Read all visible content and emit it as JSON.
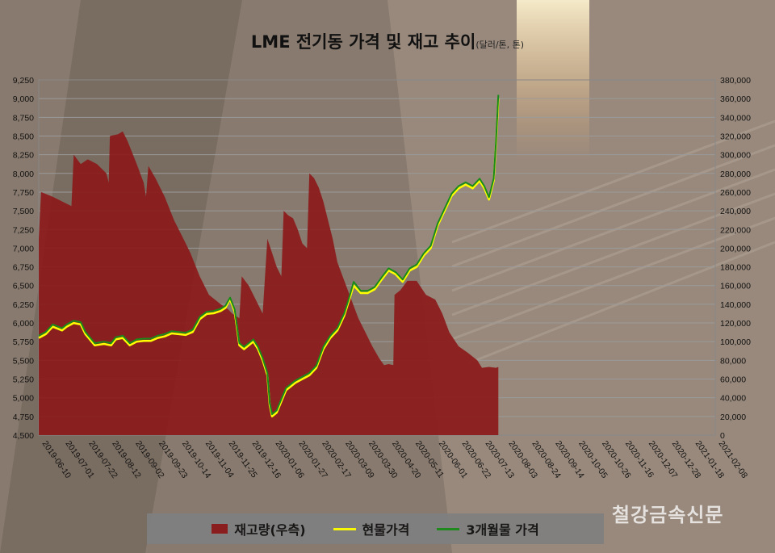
{
  "title": "LME 전기동 가격 및 재고 추이",
  "subtitle": "(달러/톤, 톤)",
  "watermark": "철강금속신문",
  "legend": {
    "inventory": "재고량(우측)",
    "spot": "현물가격",
    "three_month": "3개월물 가격"
  },
  "colors": {
    "inventory": "#8b1a1a",
    "spot": "#ffff00",
    "three_month": "#1a8a1a",
    "grid": "#9a9a9a"
  },
  "chart_data": {
    "type": "area+line",
    "xlabel": "",
    "ylabel": "",
    "grid": true,
    "legend_position": "bottom",
    "x_ticks": [
      "2019-06-10",
      "2019-07-01",
      "2019-07-22",
      "2019-08-12",
      "2019-09-02",
      "2019-09-23",
      "2019-10-14",
      "2019-11-04",
      "2019-11-25",
      "2019-12-16",
      "2020-01-06",
      "2020-01-27",
      "2020-02-17",
      "2020-03-09",
      "2020-03-30",
      "2020-04-20",
      "2020-05-11",
      "2020-06-01",
      "2020-06-22",
      "2020-07-13",
      "2020-08-03",
      "2020-08-24",
      "2020-09-14",
      "2020-10-05",
      "2020-10-26",
      "2020-11-16",
      "2020-12-07",
      "2020-12-28",
      "2021-01-18",
      "2021-02-08"
    ],
    "y_left": {
      "min": 4500,
      "max": 9250,
      "step": 250,
      "ticks": [
        "4,500",
        "4,750",
        "5,000",
        "5,250",
        "5,500",
        "5,750",
        "6,000",
        "6,250",
        "6,500",
        "6,750",
        "7,000",
        "7,250",
        "7,500",
        "7,750",
        "8,000",
        "8,250",
        "8,500",
        "8,750",
        "9,000",
        "9,250"
      ]
    },
    "y_right": {
      "min": 0,
      "max": 380000,
      "step": 20000,
      "ticks": [
        "0",
        "20,000",
        "40,000",
        "60,000",
        "80,000",
        "100,000",
        "120,000",
        "140,000",
        "160,000",
        "180,000",
        "200,000",
        "220,000",
        "240,000",
        "260,000",
        "280,000",
        "300,000",
        "320,000",
        "340,000",
        "360,000",
        "380,000"
      ]
    },
    "series": [
      {
        "name": "재고량(우측)",
        "axis": "right",
        "points": [
          [
            0,
            210000
          ],
          [
            0.1,
            260000
          ],
          [
            0.6,
            255000
          ],
          [
            1.0,
            250000
          ],
          [
            1.4,
            245000
          ],
          [
            1.5,
            300000
          ],
          [
            1.8,
            290000
          ],
          [
            2.1,
            295000
          ],
          [
            2.5,
            290000
          ],
          [
            2.9,
            280000
          ],
          [
            3.0,
            270000
          ],
          [
            3.05,
            320000
          ],
          [
            3.4,
            322000
          ],
          [
            3.6,
            325000
          ],
          [
            3.8,
            315000
          ],
          [
            4.2,
            290000
          ],
          [
            4.5,
            270000
          ],
          [
            4.6,
            255000
          ],
          [
            4.7,
            288000
          ],
          [
            5.0,
            275000
          ],
          [
            5.4,
            255000
          ],
          [
            5.8,
            230000
          ],
          [
            6.2,
            210000
          ],
          [
            6.5,
            195000
          ],
          [
            6.9,
            170000
          ],
          [
            7.3,
            150000
          ],
          [
            7.8,
            140000
          ],
          [
            8.1,
            135000
          ],
          [
            8.3,
            130000
          ],
          [
            8.6,
            125000
          ],
          [
            8.7,
            170000
          ],
          [
            9.0,
            160000
          ],
          [
            9.2,
            150000
          ],
          [
            9.4,
            140000
          ],
          [
            9.6,
            130000
          ],
          [
            9.8,
            210000
          ],
          [
            10.0,
            195000
          ],
          [
            10.2,
            180000
          ],
          [
            10.4,
            170000
          ],
          [
            10.5,
            240000
          ],
          [
            10.7,
            235000
          ],
          [
            10.9,
            232000
          ],
          [
            11.1,
            220000
          ],
          [
            11.3,
            205000
          ],
          [
            11.5,
            200000
          ],
          [
            11.6,
            280000
          ],
          [
            11.8,
            275000
          ],
          [
            12.0,
            265000
          ],
          [
            12.2,
            250000
          ],
          [
            12.4,
            230000
          ],
          [
            12.6,
            210000
          ],
          [
            12.8,
            185000
          ],
          [
            13.1,
            165000
          ],
          [
            13.4,
            145000
          ],
          [
            13.7,
            125000
          ],
          [
            14.0,
            110000
          ],
          [
            14.3,
            95000
          ],
          [
            14.6,
            82000
          ],
          [
            14.8,
            75000
          ],
          [
            15.0,
            76000
          ],
          [
            15.2,
            75000
          ],
          [
            15.25,
            150000
          ],
          [
            15.5,
            155000
          ],
          [
            15.8,
            165000
          ],
          [
            16.2,
            165000
          ],
          [
            16.6,
            150000
          ],
          [
            17.0,
            145000
          ],
          [
            17.3,
            130000
          ],
          [
            17.6,
            110000
          ],
          [
            18.0,
            95000
          ],
          [
            18.4,
            88000
          ],
          [
            18.8,
            80000
          ],
          [
            19.0,
            72000
          ],
          [
            19.3,
            73000
          ],
          [
            19.6,
            72000
          ],
          [
            19.7,
            73000
          ]
        ]
      },
      {
        "name": "현물가격",
        "axis": "left",
        "points": [
          [
            0,
            5800
          ],
          [
            0.3,
            5850
          ],
          [
            0.6,
            5950
          ],
          [
            1.0,
            5900
          ],
          [
            1.2,
            5950
          ],
          [
            1.5,
            6000
          ],
          [
            1.8,
            5980
          ],
          [
            2.0,
            5850
          ],
          [
            2.4,
            5700
          ],
          [
            2.8,
            5720
          ],
          [
            3.1,
            5700
          ],
          [
            3.3,
            5780
          ],
          [
            3.6,
            5800
          ],
          [
            3.9,
            5700
          ],
          [
            4.2,
            5750
          ],
          [
            4.5,
            5760
          ],
          [
            4.8,
            5760
          ],
          [
            5.1,
            5800
          ],
          [
            5.4,
            5820
          ],
          [
            5.7,
            5860
          ],
          [
            6.0,
            5850
          ],
          [
            6.3,
            5840
          ],
          [
            6.6,
            5880
          ],
          [
            6.9,
            6050
          ],
          [
            7.2,
            6120
          ],
          [
            7.5,
            6130
          ],
          [
            7.8,
            6160
          ],
          [
            8.0,
            6200
          ],
          [
            8.2,
            6320
          ],
          [
            8.4,
            6150
          ],
          [
            8.6,
            5700
          ],
          [
            8.8,
            5650
          ],
          [
            9.0,
            5700
          ],
          [
            9.2,
            5750
          ],
          [
            9.4,
            5650
          ],
          [
            9.6,
            5500
          ],
          [
            9.8,
            5300
          ],
          [
            9.9,
            4900
          ],
          [
            10.0,
            4750
          ],
          [
            10.2,
            4800
          ],
          [
            10.4,
            4950
          ],
          [
            10.6,
            5100
          ],
          [
            10.8,
            5150
          ],
          [
            11.0,
            5200
          ],
          [
            11.3,
            5250
          ],
          [
            11.6,
            5300
          ],
          [
            11.9,
            5400
          ],
          [
            12.2,
            5650
          ],
          [
            12.5,
            5800
          ],
          [
            12.8,
            5900
          ],
          [
            13.1,
            6100
          ],
          [
            13.3,
            6300
          ],
          [
            13.5,
            6500
          ],
          [
            13.8,
            6400
          ],
          [
            14.1,
            6400
          ],
          [
            14.4,
            6450
          ],
          [
            14.7,
            6580
          ],
          [
            15.0,
            6700
          ],
          [
            15.3,
            6650
          ],
          [
            15.6,
            6550
          ],
          [
            15.9,
            6700
          ],
          [
            16.2,
            6750
          ],
          [
            16.5,
            6900
          ],
          [
            16.8,
            7000
          ],
          [
            17.1,
            7300
          ],
          [
            17.4,
            7500
          ],
          [
            17.7,
            7700
          ],
          [
            18.0,
            7800
          ],
          [
            18.3,
            7850
          ],
          [
            18.6,
            7800
          ],
          [
            18.9,
            7900
          ],
          [
            19.1,
            7800
          ],
          [
            19.3,
            7650
          ],
          [
            19.5,
            7900
          ],
          [
            19.6,
            8400
          ],
          [
            19.7,
            9000
          ]
        ]
      },
      {
        "name": "3개월물 가격",
        "axis": "left",
        "points": [
          [
            0,
            5830
          ],
          [
            0.3,
            5880
          ],
          [
            0.6,
            5980
          ],
          [
            1.0,
            5930
          ],
          [
            1.2,
            5980
          ],
          [
            1.5,
            6030
          ],
          [
            1.8,
            6010
          ],
          [
            2.0,
            5880
          ],
          [
            2.4,
            5730
          ],
          [
            2.8,
            5750
          ],
          [
            3.1,
            5730
          ],
          [
            3.3,
            5810
          ],
          [
            3.6,
            5830
          ],
          [
            3.9,
            5730
          ],
          [
            4.2,
            5780
          ],
          [
            4.5,
            5790
          ],
          [
            4.8,
            5790
          ],
          [
            5.1,
            5830
          ],
          [
            5.4,
            5850
          ],
          [
            5.7,
            5890
          ],
          [
            6.0,
            5880
          ],
          [
            6.3,
            5870
          ],
          [
            6.6,
            5910
          ],
          [
            6.9,
            6080
          ],
          [
            7.2,
            6150
          ],
          [
            7.5,
            6160
          ],
          [
            7.8,
            6190
          ],
          [
            8.0,
            6230
          ],
          [
            8.2,
            6340
          ],
          [
            8.4,
            6180
          ],
          [
            8.6,
            5730
          ],
          [
            8.8,
            5680
          ],
          [
            9.0,
            5730
          ],
          [
            9.2,
            5780
          ],
          [
            9.4,
            5680
          ],
          [
            9.6,
            5530
          ],
          [
            9.8,
            5330
          ],
          [
            9.9,
            4930
          ],
          [
            10.0,
            4780
          ],
          [
            10.2,
            4830
          ],
          [
            10.4,
            4980
          ],
          [
            10.6,
            5130
          ],
          [
            10.8,
            5180
          ],
          [
            11.0,
            5230
          ],
          [
            11.3,
            5280
          ],
          [
            11.6,
            5330
          ],
          [
            11.9,
            5430
          ],
          [
            12.2,
            5680
          ],
          [
            12.5,
            5830
          ],
          [
            12.8,
            5930
          ],
          [
            13.1,
            6130
          ],
          [
            13.3,
            6330
          ],
          [
            13.5,
            6550
          ],
          [
            13.8,
            6430
          ],
          [
            14.1,
            6430
          ],
          [
            14.4,
            6480
          ],
          [
            14.7,
            6610
          ],
          [
            15.0,
            6730
          ],
          [
            15.3,
            6680
          ],
          [
            15.6,
            6580
          ],
          [
            15.9,
            6730
          ],
          [
            16.2,
            6780
          ],
          [
            16.5,
            6930
          ],
          [
            16.8,
            7030
          ],
          [
            17.1,
            7330
          ],
          [
            17.4,
            7530
          ],
          [
            17.7,
            7730
          ],
          [
            18.0,
            7830
          ],
          [
            18.3,
            7880
          ],
          [
            18.6,
            7830
          ],
          [
            18.9,
            7930
          ],
          [
            19.1,
            7830
          ],
          [
            19.3,
            7680
          ],
          [
            19.5,
            7930
          ],
          [
            19.6,
            8430
          ],
          [
            19.7,
            9050
          ]
        ]
      }
    ]
  }
}
